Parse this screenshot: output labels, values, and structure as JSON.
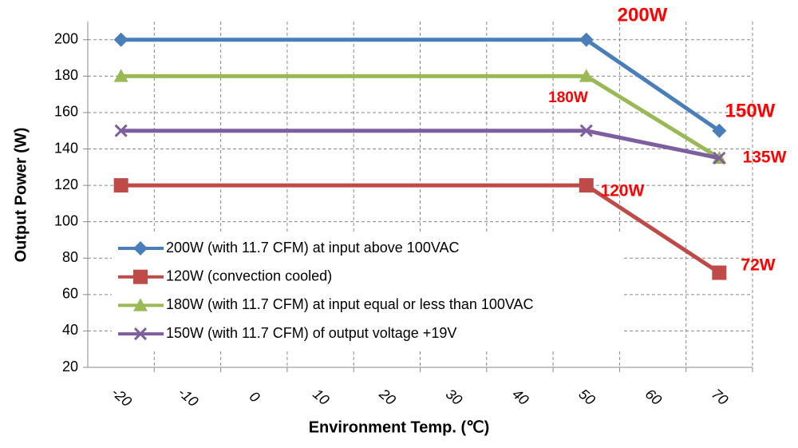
{
  "chart_data": {
    "type": "line",
    "x": [
      -20,
      50,
      70
    ],
    "xlabel": "Environment Temp. (℃)",
    "ylabel": "Output Power (W)",
    "xlim": [
      -25,
      75
    ],
    "xticks": [
      -20,
      -10,
      0,
      10,
      20,
      30,
      40,
      50,
      60,
      70
    ],
    "ylim": [
      20,
      210
    ],
    "yticks": [
      20,
      40,
      60,
      80,
      100,
      120,
      140,
      160,
      180,
      200
    ],
    "grid": true,
    "legend": "lower left",
    "series": [
      {
        "name": "200W (with 11.7 CFM) at input above 100VAC",
        "color": "#4a7ebb",
        "marker": "diamond",
        "values": [
          200,
          200,
          150
        ]
      },
      {
        "name": "120W (convection cooled)",
        "color": "#be4b48",
        "marker": "square",
        "values": [
          120,
          120,
          72
        ]
      },
      {
        "name": "180W (with 11.7 CFM) at input equal or less than 100VAC",
        "color": "#98b954",
        "marker": "triangle",
        "values": [
          180,
          180,
          135
        ]
      },
      {
        "name": "150W (with 11.7 CFM) of output voltage +19V",
        "color": "#7d5fa0",
        "marker": "x",
        "values": [
          150,
          150,
          135
        ]
      }
    ],
    "annotations": [
      "200W",
      "180W",
      "150W",
      "135W",
      "120W",
      "72W"
    ],
    "annotation_color": "#ff0000"
  }
}
